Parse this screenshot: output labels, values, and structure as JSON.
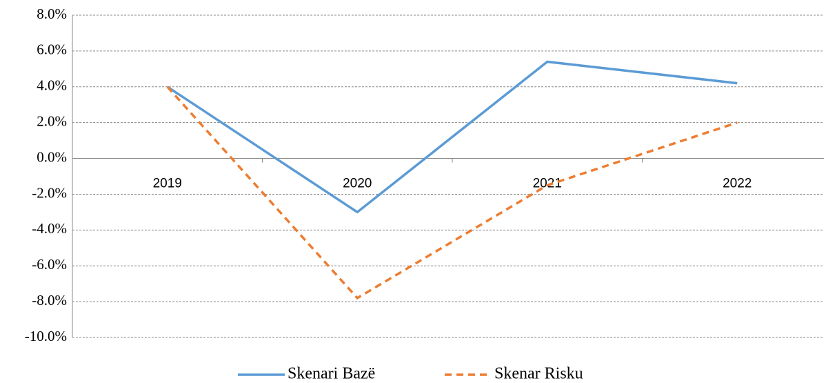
{
  "chart_data": {
    "type": "line",
    "categories": [
      "2019",
      "2020",
      "2021",
      "2022"
    ],
    "series": [
      {
        "name": "Skenari Bazë",
        "color": "#5b9bd5",
        "dash": false,
        "values": [
          4.0,
          -3.0,
          5.4,
          4.2
        ]
      },
      {
        "name": "Skenar Risku",
        "color": "#ed7d31",
        "dash": true,
        "values": [
          4.0,
          -7.8,
          -1.5,
          2.0
        ]
      }
    ],
    "ylim": [
      -10,
      8
    ],
    "yticks": [
      {
        "value": -10,
        "label": "-10.0%"
      },
      {
        "value": -8,
        "label": "-8.0%"
      },
      {
        "value": -6,
        "label": "-6.0%"
      },
      {
        "value": -4,
        "label": "-4.0%"
      },
      {
        "value": -2,
        "label": "-2.0%"
      },
      {
        "value": 0,
        "label": "0.0%"
      },
      {
        "value": 2,
        "label": "2.0%"
      },
      {
        "value": 4,
        "label": "4.0%"
      },
      {
        "value": 6,
        "label": "6.0%"
      },
      {
        "value": 8,
        "label": "8.0%"
      }
    ],
    "grid": true,
    "legend": "bottom"
  }
}
